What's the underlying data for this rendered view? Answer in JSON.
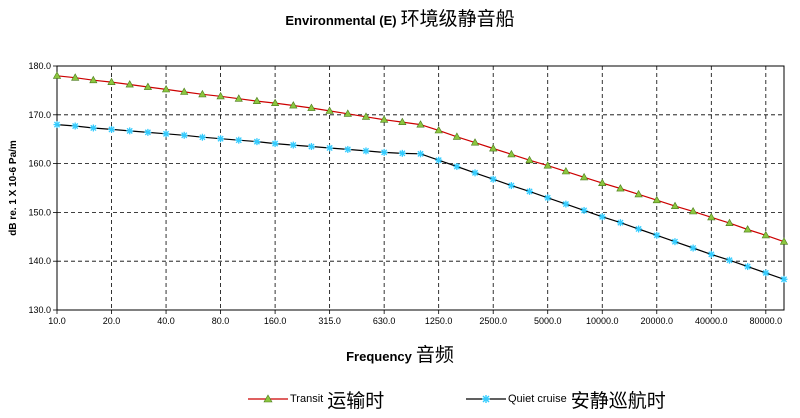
{
  "chart_data": {
    "type": "line",
    "title": "Environmental (E)",
    "title_zh": "环境级静音船",
    "xlabel": "Frequency",
    "xlabel_zh": "音频",
    "ylabel": "dB re. 1 X 10-6 Pa/m",
    "x_scale": "log",
    "x_tick_labels": [
      "10.0",
      "20.0",
      "40.0",
      "80.0",
      "160.0",
      "315.0",
      "630.0",
      "1250.0",
      "2500.0",
      "5000.0",
      "10000.0",
      "20000.0",
      "40000.0",
      "80000.0"
    ],
    "y_ticks": [
      "130.0",
      "140.0",
      "150.0",
      "160.0",
      "170.0",
      "180.0"
    ],
    "ylim": [
      130,
      180
    ],
    "grid": true,
    "legend_position": "bottom",
    "x": [
      10,
      12.5,
      16,
      20,
      25,
      31.5,
      40,
      50,
      63,
      80,
      100,
      125,
      160,
      200,
      250,
      315,
      400,
      500,
      630,
      800,
      1000,
      1250,
      1600,
      2000,
      2500,
      3150,
      4000,
      5000,
      6300,
      8000,
      10000,
      12500,
      16000,
      20000,
      25000,
      31500,
      40000,
      50000,
      63000,
      80000,
      100000
    ],
    "series": [
      {
        "name": "Transit",
        "name_zh": "运输时",
        "color": "#cc0000",
        "marker": "triangle",
        "marker_color": "#8cc63f",
        "values": [
          178,
          177.6,
          177.1,
          176.7,
          176.2,
          175.7,
          175.2,
          174.7,
          174.2,
          173.8,
          173.3,
          172.8,
          172.4,
          171.9,
          171.4,
          170.8,
          170.2,
          169.6,
          169.0,
          168.5,
          168.0,
          166.8,
          165.5,
          164.3,
          163.1,
          161.9,
          160.7,
          159.6,
          158.4,
          157.2,
          156.0,
          154.9,
          153.7,
          152.5,
          151.3,
          150.2,
          149.0,
          147.8,
          146.5,
          145.3,
          144.0
        ]
      },
      {
        "name": "Quiet cruise",
        "name_zh": "安静巡航时",
        "color": "#000000",
        "marker": "star",
        "marker_color": "#33ccff",
        "values": [
          168,
          167.7,
          167.3,
          167.0,
          166.7,
          166.4,
          166.1,
          165.8,
          165.4,
          165.1,
          164.8,
          164.5,
          164.1,
          163.8,
          163.5,
          163.2,
          162.9,
          162.6,
          162.3,
          162.1,
          162.0,
          160.7,
          159.4,
          158.1,
          156.8,
          155.5,
          154.3,
          153.0,
          151.7,
          150.4,
          149.1,
          147.9,
          146.6,
          145.3,
          144.0,
          142.7,
          141.4,
          140.2,
          138.9,
          137.6,
          136.3
        ]
      }
    ]
  }
}
